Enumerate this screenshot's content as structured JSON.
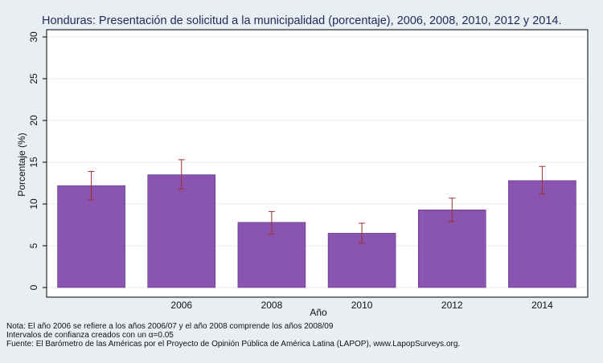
{
  "chart_data": {
    "type": "bar",
    "title": "Honduras: Presentación de solicitud a la municipalidad (porcentaje), 2006, 2008, 2010, 2012 y 2014.",
    "xlabel": "Año",
    "ylabel": "Porcentaje (%)",
    "ylim": [
      0,
      30
    ],
    "yticks": [
      0,
      5,
      10,
      15,
      20,
      25,
      30
    ],
    "grid": true,
    "legend": "none",
    "categories": [
      "",
      "2006",
      "2008",
      "2010",
      "2012",
      "2014"
    ],
    "values": [
      12.2,
      13.5,
      7.8,
      6.5,
      9.3,
      12.8
    ],
    "ci_low": [
      10.5,
      11.8,
      6.4,
      5.3,
      7.9,
      11.2
    ],
    "ci_high": [
      13.9,
      15.3,
      9.1,
      7.7,
      10.7,
      14.5
    ],
    "bar_color": "#8a55b0",
    "errorbar_color": "#a0302a"
  },
  "notes": {
    "line1": "Nota: El año 2006 se refiere a los años 2006/07 y el año 2008 comprende los años 2008/09",
    "line2": "Intervalos de confianza creados con un α=0.05",
    "line3": "Fuente: El Barómetro de las Américas por el Proyecto de Opinión Pública de América Latina (LAPOP), www.LapopSurveys.org."
  }
}
